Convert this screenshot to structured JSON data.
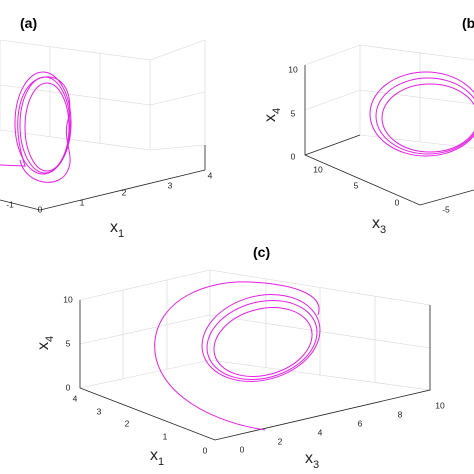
{
  "panels": [
    {
      "label": "(a)",
      "axes": [
        {
          "name": "x",
          "subscript": "1",
          "ticks": [
            "-1",
            "0",
            "1",
            "2",
            "3",
            "4"
          ]
        }
      ]
    },
    {
      "label": "(b",
      "axes": [
        {
          "name": "x",
          "subscript": "4",
          "ticks": [
            "10",
            "5",
            "0"
          ]
        },
        {
          "name": "x",
          "subscript": "3",
          "ticks": [
            "10",
            "5",
            "0",
            "-5"
          ]
        }
      ]
    },
    {
      "label": "(c)",
      "axes": [
        {
          "name": "x",
          "subscript": "4",
          "ticks": [
            "10",
            "5",
            "0"
          ]
        },
        {
          "name": "x",
          "subscript": "1",
          "ticks": [
            "4",
            "3",
            "2",
            "1",
            "0"
          ]
        },
        {
          "name": "x",
          "subscript": "3",
          "ticks": [
            "0",
            "2",
            "4",
            "6",
            "8",
            "10"
          ]
        }
      ]
    }
  ]
}
